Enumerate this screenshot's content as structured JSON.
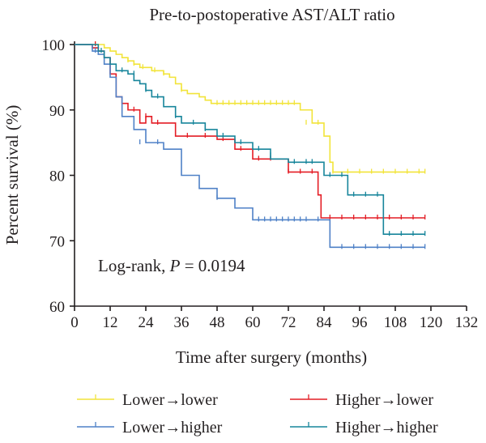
{
  "chart_data": {
    "type": "line",
    "subtype": "kaplan-meier",
    "title": "Pre-to-postoperative AST/ALT ratio",
    "xlabel": "Time after surgery (months)",
    "ylabel": "Percent survival (%)",
    "xlim": [
      0,
      132
    ],
    "ylim": [
      60,
      100
    ],
    "xticks": [
      0,
      12,
      24,
      36,
      48,
      60,
      72,
      84,
      96,
      108,
      120,
      132
    ],
    "yticks": [
      60,
      70,
      80,
      90,
      100
    ],
    "annotation": {
      "prefix": "Log-rank, ",
      "p_symbol": "P",
      "suffix": " = 0.0194"
    },
    "legend_position": "bottom",
    "series": [
      {
        "name": "Lower→lower",
        "color": "#f2e43a",
        "steps": [
          [
            0,
            100
          ],
          [
            10,
            99.5
          ],
          [
            12,
            99
          ],
          [
            14,
            98.5
          ],
          [
            16,
            98
          ],
          [
            18,
            97.5
          ],
          [
            20,
            97
          ],
          [
            22,
            96.5
          ],
          [
            26,
            96
          ],
          [
            30,
            95.5
          ],
          [
            32,
            95
          ],
          [
            34,
            94
          ],
          [
            36,
            93
          ],
          [
            38,
            92.5
          ],
          [
            42,
            92
          ],
          [
            44,
            91.5
          ],
          [
            46,
            91
          ],
          [
            76,
            90
          ],
          [
            80,
            88
          ],
          [
            84,
            86
          ],
          [
            86,
            82
          ],
          [
            87,
            80.5
          ],
          [
            118,
            80.5
          ]
        ],
        "censored": [
          [
            7,
            100
          ],
          [
            18,
            97.5
          ],
          [
            20,
            97
          ],
          [
            23,
            96.5
          ],
          [
            27,
            96
          ],
          [
            30,
            95.5
          ],
          [
            36,
            93
          ],
          [
            48,
            91
          ],
          [
            50,
            91
          ],
          [
            52,
            91
          ],
          [
            54,
            91
          ],
          [
            56,
            91
          ],
          [
            58,
            91
          ],
          [
            60,
            91
          ],
          [
            62,
            91
          ],
          [
            64,
            91
          ],
          [
            66,
            91
          ],
          [
            68,
            91
          ],
          [
            70,
            91
          ],
          [
            72,
            91
          ],
          [
            74,
            91
          ],
          [
            78,
            88
          ],
          [
            82,
            88
          ],
          [
            87,
            80.5
          ],
          [
            92,
            80.5
          ],
          [
            96,
            80.5
          ],
          [
            100,
            80.5
          ],
          [
            104,
            80.5
          ],
          [
            108,
            80.5
          ],
          [
            112,
            80.5
          ],
          [
            116,
            80.5
          ],
          [
            118,
            80.5
          ]
        ]
      },
      {
        "name": "Higher→lower",
        "color": "#e41d25",
        "steps": [
          [
            0,
            100
          ],
          [
            6,
            99.5
          ],
          [
            8,
            99
          ],
          [
            10,
            98
          ],
          [
            12,
            95.5
          ],
          [
            14,
            92
          ],
          [
            16,
            91
          ],
          [
            18,
            90
          ],
          [
            22,
            88
          ],
          [
            24,
            89
          ],
          [
            26,
            88
          ],
          [
            34,
            86
          ],
          [
            48,
            85.5
          ],
          [
            54,
            84
          ],
          [
            60,
            82.5
          ],
          [
            66,
            82.5
          ],
          [
            72,
            80.5
          ],
          [
            80,
            80.5
          ],
          [
            82,
            77
          ],
          [
            83,
            73.5
          ],
          [
            118,
            73.5
          ]
        ],
        "censored": [
          [
            7,
            100
          ],
          [
            20,
            90
          ],
          [
            24,
            89
          ],
          [
            28,
            88
          ],
          [
            38,
            86
          ],
          [
            44,
            86
          ],
          [
            50,
            85.5
          ],
          [
            56,
            84
          ],
          [
            62,
            82.5
          ],
          [
            66,
            82.5
          ],
          [
            72,
            80.5
          ],
          [
            76,
            80.5
          ],
          [
            80,
            80.5
          ],
          [
            86,
            73.5
          ],
          [
            90,
            73.5
          ],
          [
            94,
            73.5
          ],
          [
            98,
            73.5
          ],
          [
            102,
            73.5
          ],
          [
            106,
            73.5
          ],
          [
            110,
            73.5
          ],
          [
            114,
            73.5
          ],
          [
            118,
            73.5
          ]
        ]
      },
      {
        "name": "Lower→higher",
        "color": "#4f81c7",
        "steps": [
          [
            0,
            100
          ],
          [
            6,
            99
          ],
          [
            8,
            98.5
          ],
          [
            10,
            97
          ],
          [
            12,
            95
          ],
          [
            14,
            92
          ],
          [
            16,
            89
          ],
          [
            20,
            87
          ],
          [
            24,
            85
          ],
          [
            30,
            84
          ],
          [
            36,
            80
          ],
          [
            42,
            78
          ],
          [
            48,
            76.5
          ],
          [
            54,
            75
          ],
          [
            60,
            73.2
          ],
          [
            84,
            73.2
          ],
          [
            86,
            69
          ],
          [
            118,
            69
          ]
        ],
        "censored": [
          [
            7,
            99
          ],
          [
            22,
            85
          ],
          [
            28,
            85
          ],
          [
            48,
            76.5
          ],
          [
            62,
            73.2
          ],
          [
            64,
            73.2
          ],
          [
            66,
            73.2
          ],
          [
            68,
            73.2
          ],
          [
            70,
            73.2
          ],
          [
            72,
            73.2
          ],
          [
            74,
            73.2
          ],
          [
            76,
            73.2
          ],
          [
            78,
            73.2
          ],
          [
            82,
            73.2
          ],
          [
            90,
            69
          ],
          [
            94,
            69
          ],
          [
            98,
            69
          ],
          [
            102,
            69
          ],
          [
            106,
            69
          ],
          [
            110,
            69
          ],
          [
            114,
            69
          ],
          [
            118,
            69
          ]
        ]
      },
      {
        "name": "Higher→higher",
        "color": "#17859b",
        "steps": [
          [
            0,
            100
          ],
          [
            8,
            99
          ],
          [
            10,
            98
          ],
          [
            12,
            97
          ],
          [
            14,
            96
          ],
          [
            18,
            95.5
          ],
          [
            20,
            94.5
          ],
          [
            22,
            94
          ],
          [
            24,
            93
          ],
          [
            26,
            92
          ],
          [
            30,
            90.5
          ],
          [
            34,
            89
          ],
          [
            36,
            88
          ],
          [
            44,
            87
          ],
          [
            48,
            86
          ],
          [
            54,
            85
          ],
          [
            60,
            84
          ],
          [
            66,
            82.5
          ],
          [
            72,
            82
          ],
          [
            84,
            80
          ],
          [
            90,
            80
          ],
          [
            92,
            77
          ],
          [
            104,
            71
          ],
          [
            118,
            71
          ]
        ],
        "censored": [
          [
            9,
            99
          ],
          [
            16,
            96
          ],
          [
            20,
            95.5
          ],
          [
            24,
            93
          ],
          [
            28,
            92
          ],
          [
            34,
            89
          ],
          [
            40,
            88
          ],
          [
            44,
            87
          ],
          [
            50,
            86
          ],
          [
            56,
            85
          ],
          [
            62,
            84
          ],
          [
            66,
            83
          ],
          [
            74,
            82
          ],
          [
            78,
            82
          ],
          [
            80,
            82
          ],
          [
            86,
            80
          ],
          [
            90,
            80
          ],
          [
            94,
            77
          ],
          [
            98,
            77
          ],
          [
            102,
            77
          ],
          [
            106,
            71
          ],
          [
            110,
            71
          ],
          [
            114,
            71
          ],
          [
            118,
            71
          ]
        ]
      }
    ]
  }
}
